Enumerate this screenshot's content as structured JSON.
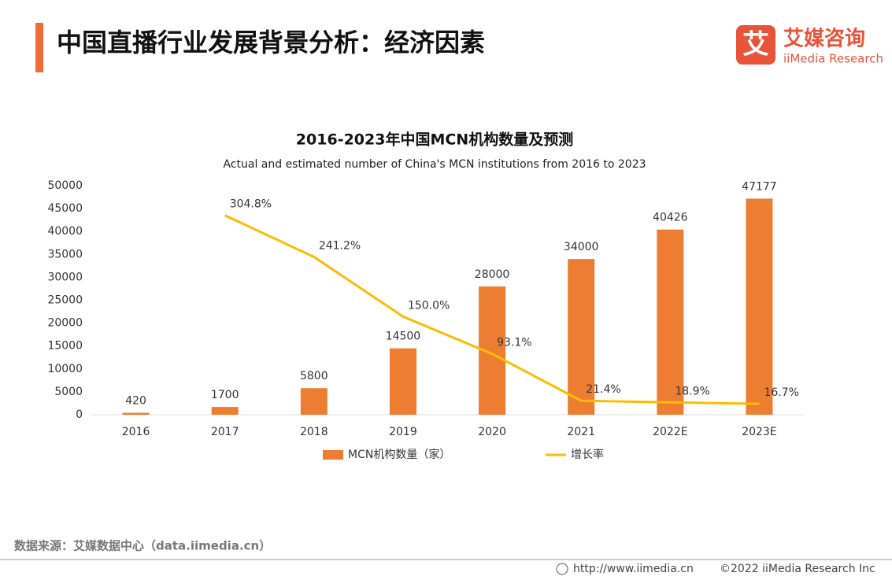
{
  "page": {
    "title": "中国直播行业发展背景分析：经济因素",
    "logo_icon": "艾",
    "logo_cn": "艾媒咨询",
    "logo_en": "iiMedia Research",
    "source": "数据来源：艾媒数据中心（data.iimedia.cn）",
    "url": "http://www.iimedia.cn",
    "copyright": "©2022  iiMedia Research  Inc"
  },
  "chart_data": {
    "type": "bar",
    "title": "2016-2023年中国MCN机构数量及预测",
    "subtitle": "Actual and estimated number of China's MCN institutions from 2016 to 2023",
    "categories": [
      "2016",
      "2017",
      "2018",
      "2019",
      "2020",
      "2021",
      "2022E",
      "2023E"
    ],
    "series": [
      {
        "name": "MCN机构数量（家）",
        "color": "#ed7d31",
        "type": "bar",
        "values": [
          420,
          1700,
          5800,
          14500,
          28000,
          34000,
          40426,
          47177
        ]
      },
      {
        "name": "增长率",
        "color": "#fbbc05",
        "type": "line",
        "axis": "y2",
        "values": [
          null,
          304.8,
          241.2,
          150.0,
          93.1,
          21.4,
          18.9,
          16.7
        ],
        "value_labels": [
          null,
          "304.8%",
          "241.2%",
          "150.0%",
          "93.1%",
          "21.4%",
          "18.9%",
          "16.7%"
        ]
      }
    ],
    "ylim": [
      0,
      50000
    ],
    "yticks": [
      0,
      5000,
      10000,
      15000,
      20000,
      25000,
      30000,
      35000,
      40000,
      45000,
      50000
    ],
    "y2lim": [
      0,
      350
    ],
    "grid": false,
    "legend": "bottom"
  }
}
